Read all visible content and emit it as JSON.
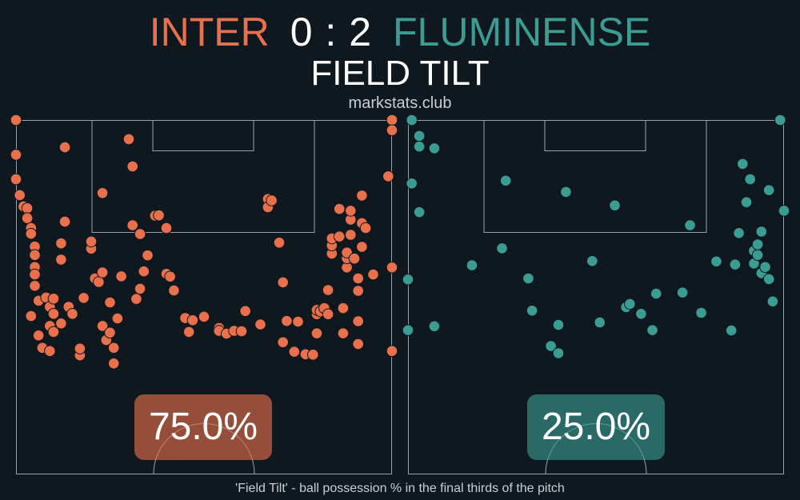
{
  "header": {
    "home_team": "INTER",
    "score": "0 : 2",
    "away_team": "FLUMINENSE",
    "subtitle": "FIELD TILT",
    "site": "markstats.club"
  },
  "footnote": "'Field Tilt' - ball possession % in the final thirds of the pitch",
  "colors": {
    "background": "#0f181f",
    "home": "#e8704c",
    "away": "#3a9c93",
    "pitch_lines": "#9aa3a8"
  },
  "chart_data": [
    {
      "type": "scatter",
      "team": "INTER",
      "value_label": "75.0%",
      "field_tilt_pct": 75.0,
      "points": [
        [
          0,
          100
        ],
        [
          0,
          90.2
        ],
        [
          0,
          83.3
        ],
        [
          1,
          78.8
        ],
        [
          2,
          75.6
        ],
        [
          3,
          75.1
        ],
        [
          3,
          72.3
        ],
        [
          4,
          69.5
        ],
        [
          4,
          67.9
        ],
        [
          5,
          64.3
        ],
        [
          5,
          61.9
        ],
        [
          5,
          58.5
        ],
        [
          5,
          56.4
        ],
        [
          5,
          53.2
        ],
        [
          6,
          49.0
        ],
        [
          4,
          44.7
        ],
        [
          6,
          39.2
        ],
        [
          7,
          35.7
        ],
        [
          8,
          49.9
        ],
        [
          9,
          47.3
        ],
        [
          9,
          41.9
        ],
        [
          9,
          34.8
        ],
        [
          10,
          49.6
        ],
        [
          10,
          45.3
        ],
        [
          10,
          40.2
        ],
        [
          12,
          42.6
        ],
        [
          12,
          65.2
        ],
        [
          12,
          60.6
        ],
        [
          13,
          71.3
        ],
        [
          13,
          92.3
        ],
        [
          14,
          47.3
        ],
        [
          15,
          45.3
        ],
        [
          17,
          33.6
        ],
        [
          17,
          35.5
        ],
        [
          18,
          49.8
        ],
        [
          20,
          63.7
        ],
        [
          20,
          65.7
        ],
        [
          21,
          55.3
        ],
        [
          22,
          54.3
        ],
        [
          23,
          79.4
        ],
        [
          23,
          57.0
        ],
        [
          23,
          41.9
        ],
        [
          24,
          37.9
        ],
        [
          25,
          48.5
        ],
        [
          25,
          40.0
        ],
        [
          26,
          31.3
        ],
        [
          26,
          35.7
        ],
        [
          27,
          44.0
        ],
        [
          28,
          55.9
        ],
        [
          30,
          94.6
        ],
        [
          31,
          70.3
        ],
        [
          31,
          86.9
        ],
        [
          32,
          49.5
        ],
        [
          33,
          67.8
        ],
        [
          33,
          52.4
        ],
        [
          34,
          57.3
        ],
        [
          35,
          61.8
        ],
        [
          37,
          73.0
        ],
        [
          38,
          73.1
        ],
        [
          40,
          69.5
        ],
        [
          40,
          56.6
        ],
        [
          41,
          55.8
        ],
        [
          42,
          51.9
        ],
        [
          45,
          44.1
        ],
        [
          46,
          40.2
        ],
        [
          47,
          43.5
        ],
        [
          50,
          44.5
        ],
        [
          54,
          41.3
        ],
        [
          54,
          40.5
        ],
        [
          56,
          39.7
        ],
        [
          58,
          40.5
        ],
        [
          60,
          40.4
        ],
        [
          61,
          46.1
        ],
        [
          65,
          42.3
        ],
        [
          67,
          77.7
        ],
        [
          67,
          75.4
        ],
        [
          68,
          77.3
        ],
        [
          70,
          65.4
        ],
        [
          71,
          54.2
        ],
        [
          71,
          37.3
        ],
        [
          72,
          43.3
        ],
        [
          74,
          34.6
        ],
        [
          75,
          43.1
        ],
        [
          77,
          33.9
        ],
        [
          79,
          33.8
        ],
        [
          80,
          39.8
        ],
        [
          80,
          45.2
        ],
        [
          80,
          46.4
        ],
        [
          81,
          46.0
        ],
        [
          82,
          46.9
        ],
        [
          83,
          45.2
        ],
        [
          83,
          52.0
        ],
        [
          84,
          62.3
        ],
        [
          84,
          64.6
        ],
        [
          84,
          66.6
        ],
        [
          86,
          67.1
        ],
        [
          86,
          74.9
        ],
        [
          87,
          39.8
        ],
        [
          87,
          46.9
        ],
        [
          88,
          58.4
        ],
        [
          88,
          61.0
        ],
        [
          88,
          62.6
        ],
        [
          89,
          67.6
        ],
        [
          89,
          71.9
        ],
        [
          89,
          74.4
        ],
        [
          90,
          60.9
        ],
        [
          91,
          36.8
        ],
        [
          91,
          43.2
        ],
        [
          91,
          51.8
        ],
        [
          91,
          55.3
        ],
        [
          92,
          64.2
        ],
        [
          92,
          70.9
        ],
        [
          92,
          78.7
        ],
        [
          93,
          69.5
        ],
        [
          95,
          56.4
        ],
        [
          99,
          84.1
        ],
        [
          100,
          100
        ],
        [
          100,
          58.4
        ],
        [
          100,
          34.8
        ],
        [
          100,
          97.1
        ]
      ]
    },
    {
      "type": "scatter",
      "team": "FLUMINENSE",
      "value_label": "25.0%",
      "field_tilt_pct": 25.0,
      "points": [
        [
          1,
          100
        ],
        [
          3,
          95.5
        ],
        [
          3,
          92.5
        ],
        [
          7,
          92.0
        ],
        [
          1,
          82.1
        ],
        [
          3,
          74.0
        ],
        [
          0,
          55.0
        ],
        [
          0,
          40.7
        ],
        [
          7,
          41.8
        ],
        [
          17,
          59.0
        ],
        [
          25,
          63.8
        ],
        [
          26,
          82.9
        ],
        [
          32,
          55.3
        ],
        [
          33,
          46.2
        ],
        [
          38,
          36.2
        ],
        [
          40,
          42.2
        ],
        [
          42,
          79.7
        ],
        [
          40,
          34.2
        ],
        [
          49,
          60.2
        ],
        [
          51,
          42.9
        ],
        [
          55,
          75.9
        ],
        [
          58,
          47.2
        ],
        [
          59,
          48.1
        ],
        [
          62,
          45.3
        ],
        [
          65,
          40.7
        ],
        [
          66,
          51.0
        ],
        [
          73,
          51.3
        ],
        [
          75,
          70.3
        ],
        [
          78,
          45.6
        ],
        [
          82,
          60.1
        ],
        [
          86,
          40.6
        ],
        [
          87,
          59.2
        ],
        [
          88,
          68.1
        ],
        [
          89,
          87.6
        ],
        [
          90,
          76.8
        ],
        [
          91,
          83.3
        ],
        [
          92,
          63.1
        ],
        [
          92,
          59.5
        ],
        [
          93,
          61.9
        ],
        [
          94,
          56.8
        ],
        [
          93,
          64.9
        ],
        [
          94,
          68.5
        ],
        [
          95,
          58.5
        ],
        [
          96,
          55.1
        ],
        [
          97,
          48.8
        ],
        [
          96,
          80.2
        ],
        [
          99,
          100
        ],
        [
          100,
          74.4
        ]
      ]
    }
  ]
}
